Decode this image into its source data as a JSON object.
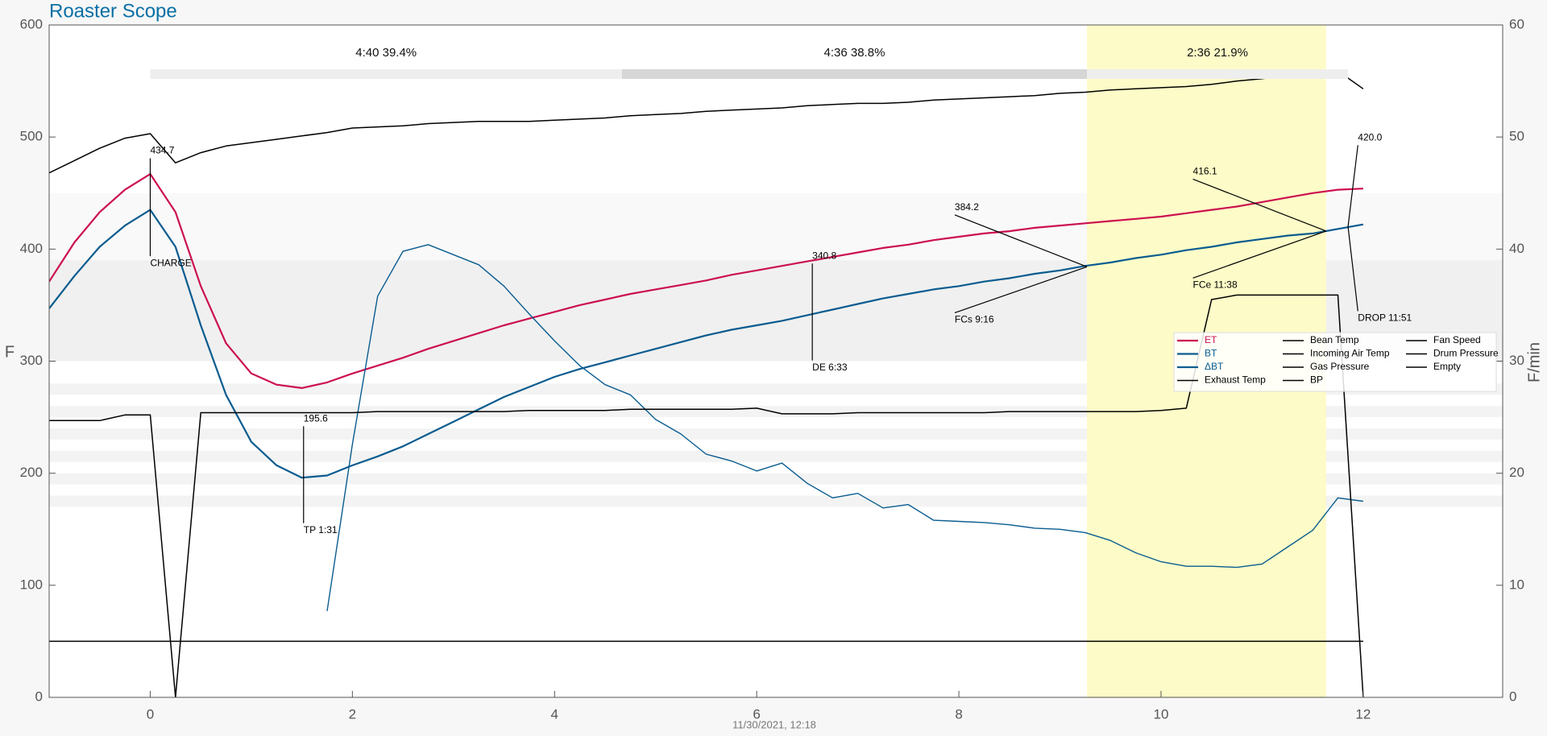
{
  "chart_data": {
    "type": "line",
    "title": "Roaster Scope",
    "ylabel": "F",
    "y2label": "F/min",
    "footer": "11/30/2021, 12:18",
    "xlim": [
      -1,
      13.38
    ],
    "ylim": [
      0,
      600
    ],
    "y2lim": [
      0,
      60
    ],
    "xticks": [
      0,
      2,
      4,
      6,
      8,
      10,
      12
    ],
    "yticks": [
      0,
      100,
      200,
      300,
      400,
      500,
      600
    ],
    "y2ticks": [
      0,
      10,
      20,
      30,
      40,
      50,
      60
    ],
    "legend": "center right",
    "x": [
      -1,
      -0.75,
      -0.5,
      -0.25,
      0,
      0.25,
      0.5,
      0.75,
      1,
      1.25,
      1.5,
      1.75,
      2,
      2.25,
      2.5,
      2.75,
      3,
      3.25,
      3.5,
      3.75,
      4,
      4.25,
      4.5,
      4.75,
      5,
      5.25,
      5.5,
      5.75,
      6,
      6.25,
      6.5,
      6.75,
      7,
      7.25,
      7.5,
      7.75,
      8,
      8.25,
      8.5,
      8.75,
      9,
      9.25,
      9.5,
      9.75,
      10,
      10.25,
      10.5,
      10.75,
      11,
      11.25,
      11.5,
      11.75,
      12
    ],
    "series": [
      {
        "name": "ET",
        "color": "#cc0f50",
        "values": [
          371,
          406,
          433,
          453,
          467,
          433,
          367,
          316,
          289,
          279,
          276,
          281,
          289,
          296,
          303,
          311,
          318,
          325,
          332,
          338,
          344,
          350,
          355,
          360,
          364,
          368,
          372,
          377,
          381,
          385,
          389,
          393,
          397,
          401,
          404,
          408,
          411,
          414,
          416,
          419,
          421,
          423,
          425,
          427,
          429,
          432,
          435,
          438,
          442,
          446,
          450,
          453,
          454
        ]
      },
      {
        "name": "BT",
        "color": "#0a5c90",
        "values": [
          347,
          376,
          402,
          421,
          435,
          402,
          332,
          270,
          228,
          207,
          196,
          198,
          207,
          215,
          224,
          235,
          246,
          257,
          268,
          277,
          286,
          293,
          299,
          305,
          311,
          317,
          323,
          328,
          332,
          336,
          341,
          346,
          351,
          356,
          360,
          364,
          367,
          371,
          374,
          378,
          381,
          385,
          388,
          392,
          395,
          399,
          402,
          406,
          409,
          412,
          414,
          418,
          422
        ]
      },
      {
        "name": "ΔBT",
        "color": "#0a5c90",
        "axis": "y2",
        "values": [
          null,
          null,
          null,
          null,
          null,
          null,
          null,
          null,
          null,
          null,
          null,
          7.7,
          22.6,
          35.8,
          39.8,
          40.4,
          39.5,
          38.6,
          36.7,
          34.2,
          31.8,
          29.6,
          27.9,
          27.0,
          24.8,
          23.5,
          21.7,
          21.1,
          20.2,
          20.9,
          19.1,
          17.8,
          18.2,
          16.9,
          17.2,
          15.8,
          15.7,
          15.6,
          15.4,
          15.1,
          15.0,
          14.7,
          14.0,
          12.9,
          12.1,
          11.7,
          11.7,
          11.6,
          11.9,
          13.4,
          14.9,
          17.8,
          17.5
        ]
      },
      {
        "name": "Exhaust Temp",
        "color": "#000000",
        "values": [
          468,
          479,
          490,
          499,
          503,
          477,
          486,
          492,
          495,
          498,
          501,
          504,
          508,
          509,
          510,
          512,
          513,
          514,
          514,
          514,
          515,
          516,
          517,
          519,
          520,
          521,
          523,
          524,
          525,
          526,
          528,
          529,
          530,
          530,
          531,
          533,
          534,
          535,
          536,
          537,
          539,
          540,
          542,
          543,
          544,
          545,
          547,
          550,
          552,
          555,
          559,
          559,
          543
        ]
      },
      {
        "name": "Bean Temp",
        "color": "#000000",
        "values": [
          null,
          null,
          null,
          null,
          null,
          null,
          null,
          null,
          null,
          null,
          null,
          null,
          null,
          null,
          null,
          null,
          null,
          null,
          null,
          null,
          null,
          null,
          null,
          null,
          null,
          null,
          null,
          null,
          null,
          null,
          null,
          null,
          null,
          null,
          null,
          null,
          null,
          null,
          null,
          null,
          null,
          null,
          null,
          null,
          null,
          null,
          null,
          null,
          null,
          null,
          null,
          null,
          null
        ]
      },
      {
        "name": "Incoming Air Temp",
        "color": "#000000",
        "values": [
          247,
          247,
          247,
          252,
          252,
          0,
          254,
          254,
          254,
          254,
          254,
          254,
          254,
          255,
          255,
          255,
          255,
          255,
          255,
          256,
          256,
          256,
          256,
          257,
          257,
          257,
          257,
          257,
          258,
          253,
          253,
          253,
          254,
          254,
          254,
          254,
          254,
          254,
          255,
          255,
          255,
          255,
          255,
          255,
          256,
          258,
          355,
          359,
          359,
          359,
          359,
          359,
          0
        ]
      },
      {
        "name": "Gas Pressure",
        "color": "#000000",
        "values": [
          null,
          null,
          null,
          null,
          null,
          null,
          null,
          null,
          null,
          null,
          null,
          null,
          null,
          null,
          null,
          null,
          null,
          null,
          null,
          null,
          null,
          null,
          null,
          null,
          null,
          null,
          null,
          null,
          null,
          null,
          null,
          null,
          null,
          null,
          null,
          null,
          null,
          null,
          null,
          null,
          null,
          null,
          null,
          null,
          null,
          null,
          null,
          null,
          null,
          null,
          null,
          null,
          null
        ]
      },
      {
        "name": "BP",
        "color": "#000000",
        "values": [
          null,
          null,
          null,
          null,
          null,
          null,
          null,
          null,
          null,
          null,
          null,
          null,
          null,
          null,
          null,
          null,
          null,
          null,
          null,
          null,
          null,
          null,
          null,
          null,
          null,
          null,
          null,
          null,
          null,
          null,
          null,
          null,
          null,
          null,
          null,
          null,
          null,
          null,
          null,
          null,
          null,
          null,
          null,
          null,
          null,
          null,
          null,
          null,
          null,
          null,
          null,
          null,
          null
        ]
      },
      {
        "name": "Fan Speed",
        "color": "#000000",
        "values": [
          50,
          50,
          50,
          50,
          50,
          50,
          50,
          50,
          50,
          50,
          50,
          50,
          50,
          50,
          50,
          50,
          50,
          50,
          50,
          50,
          50,
          50,
          50,
          50,
          50,
          50,
          50,
          50,
          50,
          50,
          50,
          50,
          50,
          50,
          50,
          50,
          50,
          50,
          50,
          50,
          50,
          50,
          50,
          50,
          50,
          50,
          50,
          50,
          50,
          50,
          50,
          50,
          50
        ]
      },
      {
        "name": "Drum Pressure",
        "color": "#000000",
        "values": [
          null,
          null,
          null,
          null,
          null,
          null,
          null,
          null,
          null,
          null,
          null,
          null,
          null,
          null,
          null,
          null,
          null,
          null,
          null,
          null,
          null,
          null,
          null,
          null,
          null,
          null,
          null,
          null,
          null,
          null,
          null,
          null,
          null,
          null,
          null,
          null,
          null,
          null,
          null,
          null,
          null,
          null,
          null,
          null,
          null,
          null,
          null,
          null,
          null,
          null,
          null,
          null,
          null
        ]
      },
      {
        "name": "Empty",
        "color": "#000000",
        "values": [
          null,
          null,
          null,
          null,
          null,
          null,
          null,
          null,
          null,
          null,
          null,
          null,
          null,
          null,
          null,
          null,
          null,
          null,
          null,
          null,
          null,
          null,
          null,
          null,
          null,
          null,
          null,
          null,
          null,
          null,
          null,
          null,
          null,
          null,
          null,
          null,
          null,
          null,
          null,
          null,
          null,
          null,
          null,
          null,
          null,
          null,
          null,
          null,
          null,
          null,
          null,
          null,
          null
        ]
      }
    ],
    "bands": [
      [
        390,
        450
      ],
      [
        300,
        390
      ],
      [
        270,
        280
      ],
      [
        250,
        260
      ],
      [
        230,
        240
      ],
      [
        210,
        220
      ],
      [
        190,
        200
      ],
      [
        170,
        180
      ]
    ],
    "phases": [
      {
        "label": "4:40  39.4%",
        "start": 0,
        "end": 4.667
      },
      {
        "label": "4:36  38.8%",
        "start": 4.667,
        "end": 9.267
      },
      {
        "label": "2:36  21.9%",
        "start": 9.267,
        "end": 11.85
      }
    ],
    "annotations": [
      {
        "x": 0,
        "y": 434.7,
        "y_label": "434.7",
        "text": "CHARGE"
      },
      {
        "x": 1.517,
        "y": 195.6,
        "y_label": "195.6",
        "text": "TP 1:31"
      },
      {
        "x": 6.55,
        "y": 340.8,
        "y_label": "340.8",
        "text": "DE 6:33"
      },
      {
        "x": 9.267,
        "y": 384.2,
        "y_label": "384.2",
        "text": "FCs 9:16"
      },
      {
        "x": 11.633,
        "y": 416.1,
        "y_label": "416.1",
        "text": "FCe 11:38"
      },
      {
        "x": 11.85,
        "y": 420.0,
        "y_label": "420.0",
        "text": "DROP 11:51"
      }
    ]
  }
}
